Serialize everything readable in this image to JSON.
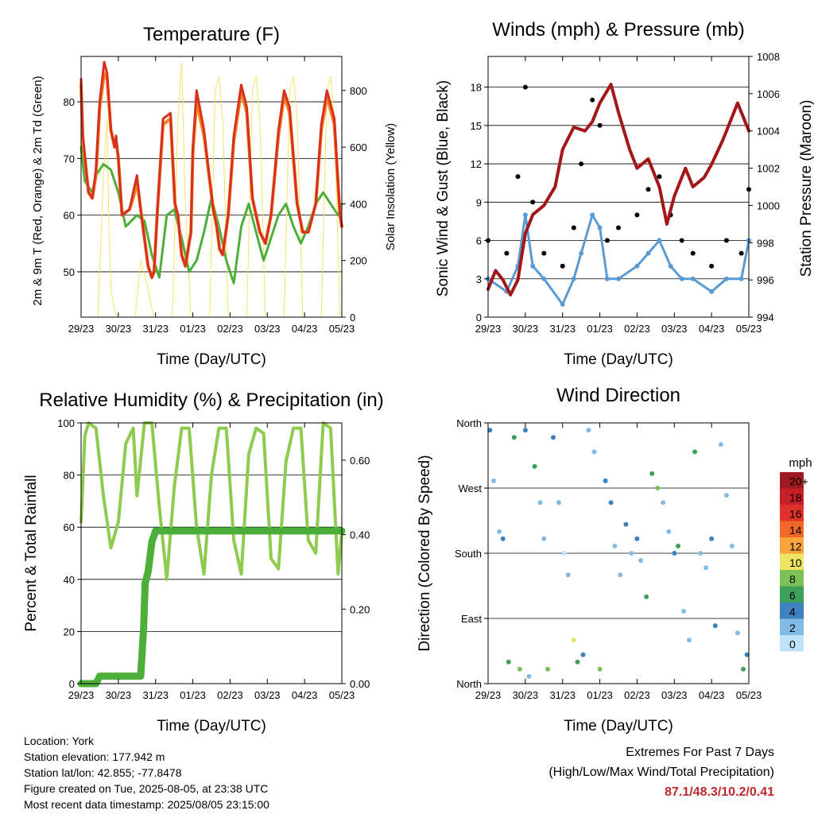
{
  "x_ticks": [
    "29/23",
    "30/23",
    "31/23",
    "01/23",
    "02/23",
    "03/23",
    "04/23",
    "05/23"
  ],
  "x_label": "Time (Day/UTC)",
  "colors": {
    "temp_2m": "#d7301f",
    "temp_9m": "#f4831f",
    "dewpoint": "#4daf3a",
    "solar": "#f5e36b",
    "wind": "#5a9bd5",
    "gust": "#000000",
    "pressure": "#a3171b",
    "rh": "#8fcb4f",
    "precip": "#4caf3a"
  },
  "chart_data": [
    {
      "type": "line",
      "title": "Temperature (F)",
      "xlabel": "Time (Day/UTC)",
      "ylabel": "2m & 9m T (Red, Orange) & 2m Td (Green)",
      "y2label": "Solar Insolation (Yellow)",
      "ylim": [
        42,
        88
      ],
      "y2lim": [
        0,
        920
      ],
      "yticks": [
        50,
        60,
        70,
        80
      ],
      "y2ticks": [
        0,
        200,
        400,
        600,
        800
      ],
      "series": [
        {
          "name": "2m T",
          "color": "#d7301f",
          "x": [
            0,
            0.05,
            0.2,
            0.3,
            0.4,
            0.5,
            0.62,
            0.7,
            0.8,
            0.9,
            0.94,
            1,
            1.1,
            1.3,
            1.4,
            1.5,
            1.6,
            1.8,
            1.9,
            1.96,
            2.05,
            2.2,
            2.4,
            2.52,
            2.6,
            2.7,
            2.8,
            2.95,
            3.0,
            3.1,
            3.3,
            3.55,
            3.64,
            3.72,
            3.8,
            3.95,
            4.1,
            4.3,
            4.45,
            4.6,
            4.8,
            4.95,
            5.1,
            5.3,
            5.45,
            5.6,
            5.8,
            5.95,
            6.1,
            6.3,
            6.45,
            6.6,
            6.8,
            6.95,
            7.0
          ],
          "y": [
            84,
            74,
            64,
            63,
            68,
            80,
            87,
            85,
            75,
            72,
            74,
            70,
            60,
            61,
            64,
            67,
            61,
            51,
            49,
            50,
            61,
            77,
            78,
            62,
            60,
            53,
            51,
            57,
            72,
            82,
            75,
            61,
            58,
            54,
            53,
            60,
            74,
            83,
            79,
            63,
            57,
            55,
            60,
            75,
            82,
            79,
            62,
            57,
            57,
            62,
            76,
            82,
            77,
            60,
            58
          ]
        },
        {
          "name": "9m T",
          "color": "#f4831f",
          "x": [
            0,
            0.05,
            0.2,
            0.3,
            0.4,
            0.5,
            0.62,
            0.7,
            0.8,
            0.9,
            0.94,
            1,
            1.1,
            1.3,
            1.4,
            1.5,
            1.6,
            1.8,
            1.9,
            1.96,
            2.05,
            2.2,
            2.4,
            2.52,
            2.6,
            2.7,
            2.8,
            2.95,
            3.0,
            3.1,
            3.3,
            3.55,
            3.64,
            3.72,
            3.8,
            3.95,
            4.1,
            4.3,
            4.45,
            4.6,
            4.8,
            4.95,
            5.1,
            5.3,
            5.45,
            5.6,
            5.8,
            5.95,
            6.1,
            6.3,
            6.45,
            6.6,
            6.8,
            6.95,
            7.0
          ],
          "y": [
            83,
            73,
            64,
            63,
            67,
            79,
            85,
            84,
            75,
            72,
            73,
            70,
            60,
            61,
            63,
            66,
            61,
            51,
            49,
            50,
            61,
            76,
            77,
            62,
            60,
            53,
            51,
            57,
            71,
            80,
            74,
            61,
            58,
            54,
            53,
            60,
            73,
            82,
            78,
            63,
            57,
            55,
            60,
            74,
            81,
            78,
            62,
            57,
            57,
            62,
            75,
            81,
            76,
            60,
            58
          ]
        },
        {
          "name": "2m Td",
          "color": "#4daf3a",
          "x": [
            0,
            0.1,
            0.3,
            0.4,
            0.6,
            0.8,
            1.0,
            1.2,
            1.5,
            1.7,
            1.9,
            2.1,
            2.3,
            2.5,
            2.7,
            2.9,
            3.1,
            3.3,
            3.5,
            3.7,
            3.9,
            4.1,
            4.3,
            4.5,
            4.7,
            4.9,
            5.1,
            5.3,
            5.5,
            5.7,
            5.9,
            6.1,
            6.3,
            6.5,
            6.7,
            6.9,
            7.0
          ],
          "y": [
            72,
            66,
            64,
            67,
            69,
            68,
            64,
            58,
            60,
            59,
            53,
            49,
            60,
            61,
            56,
            50,
            52,
            57,
            63,
            58,
            52,
            48,
            58,
            62,
            57,
            52,
            56,
            60,
            62,
            58,
            55,
            58,
            62,
            64,
            62,
            60,
            62
          ]
        },
        {
          "name": "Solar Insolation",
          "color": "#f5e36b",
          "axis": "y2",
          "x": [
            0,
            0.45,
            0.6,
            0.7,
            0.75,
            0.8,
            0.95,
            1.45,
            1.6,
            1.7,
            1.8,
            1.95,
            2.45,
            2.6,
            2.7,
            2.8,
            2.95,
            3.45,
            3.6,
            3.7,
            3.8,
            3.95,
            4.45,
            4.6,
            4.7,
            4.8,
            4.95,
            5.45,
            5.6,
            5.7,
            5.8,
            5.95,
            6.45,
            6.6,
            6.7,
            6.8,
            6.95,
            7.0
          ],
          "y": [
            0,
            0,
            500,
            700,
            300,
            100,
            0,
            0,
            200,
            150,
            100,
            0,
            0,
            700,
            900,
            400,
            0,
            0,
            800,
            850,
            700,
            0,
            0,
            800,
            850,
            700,
            0,
            0,
            800,
            850,
            700,
            0,
            0,
            800,
            850,
            700,
            0,
            0
          ]
        }
      ]
    },
    {
      "type": "scatter",
      "title": "Winds (mph) & Pressure (mb)",
      "xlabel": "Time (Day/UTC)",
      "ylabel": "Sonic Wind & Gust (Blue, Black)",
      "y2label": "Station Pressure (Maroon)",
      "ylim": [
        0,
        20.4
      ],
      "y2lim": [
        994,
        1008
      ],
      "yticks": [
        0,
        3,
        6,
        9,
        12,
        15,
        18
      ],
      "y2ticks": [
        994,
        996,
        998,
        1000,
        1002,
        1004,
        1006,
        1008
      ],
      "series": [
        {
          "name": "Gust",
          "color": "#000000",
          "x": [
            0,
            0.5,
            0.8,
            1.0,
            1.2,
            1.5,
            2.0,
            2.3,
            2.5,
            2.8,
            3.0,
            3.2,
            3.5,
            4.0,
            4.3,
            4.6,
            4.9,
            5.2,
            5.5,
            6.0,
            6.4,
            6.8,
            7.0
          ],
          "y": [
            6,
            5,
            11,
            18,
            9,
            5,
            4,
            7,
            12,
            17,
            15,
            6,
            7,
            8,
            10,
            11,
            8,
            6,
            5,
            4,
            6,
            5,
            10
          ]
        },
        {
          "name": "Sonic Wind",
          "color": "#5a9bd5",
          "x": [
            0,
            0.5,
            0.8,
            1.0,
            1.2,
            1.5,
            2.0,
            2.3,
            2.5,
            2.8,
            3.0,
            3.2,
            3.5,
            4.0,
            4.3,
            4.6,
            4.9,
            5.2,
            5.5,
            6.0,
            6.4,
            6.8,
            7.0
          ],
          "y": [
            3,
            2,
            4,
            8,
            4,
            3,
            1,
            3,
            5,
            8,
            7,
            3,
            3,
            4,
            5,
            6,
            4,
            3,
            3,
            2,
            3,
            3,
            6
          ]
        },
        {
          "name": "Station Pressure",
          "color": "#a3171b",
          "axis": "y2",
          "x": [
            0,
            0.2,
            0.4,
            0.6,
            0.8,
            1.0,
            1.2,
            1.5,
            1.8,
            2.0,
            2.3,
            2.6,
            2.8,
            3.0,
            3.3,
            3.5,
            3.8,
            4.0,
            4.3,
            4.6,
            4.8,
            5.0,
            5.3,
            5.5,
            5.8,
            6.0,
            6.3,
            6.5,
            6.7,
            6.8,
            7.0
          ],
          "y": [
            995.5,
            996.5,
            996,
            995.2,
            996,
            998.5,
            999.5,
            1000,
            1001,
            1003,
            1004.2,
            1004,
            1004.5,
            1005.5,
            1006.5,
            1005,
            1003,
            1002,
            1002.5,
            1001,
            999,
            1000.5,
            1002,
            1001,
            1001.5,
            1002.2,
            1003.5,
            1004.5,
            1005.5,
            1005,
            1004
          ]
        }
      ]
    },
    {
      "type": "line",
      "title": "Relative Humidity (%) & Precipitation (in)",
      "xlabel": "Time (Day/UTC)",
      "ylabel": "Percent & Total Rainfall",
      "ylim": [
        0,
        100
      ],
      "y2lim": [
        0,
        0.7
      ],
      "yticks": [
        0,
        20,
        40,
        60,
        80,
        100
      ],
      "y2ticks": [
        0.0,
        0.2,
        0.4,
        0.6
      ],
      "y2ticklabels": [
        "0.00",
        "0.20",
        "0.40",
        "0.60"
      ],
      "series": [
        {
          "name": "Relative Humidity",
          "color": "#8fcb4f",
          "x": [
            0,
            0.1,
            0.2,
            0.4,
            0.6,
            0.8,
            1.0,
            1.2,
            1.4,
            1.5,
            1.7,
            1.9,
            2.1,
            2.3,
            2.5,
            2.7,
            2.9,
            3.1,
            3.3,
            3.5,
            3.7,
            3.9,
            4.1,
            4.3,
            4.5,
            4.7,
            4.9,
            5.1,
            5.3,
            5.5,
            5.7,
            5.9,
            6.1,
            6.3,
            6.5,
            6.7,
            6.9,
            7.0
          ],
          "y": [
            62,
            95,
            100,
            98,
            72,
            52,
            62,
            92,
            98,
            72,
            100,
            100,
            68,
            40,
            75,
            98,
            98,
            60,
            42,
            80,
            98,
            98,
            55,
            42,
            88,
            98,
            96,
            48,
            44,
            85,
            98,
            98,
            55,
            50,
            100,
            98,
            42,
            58
          ]
        },
        {
          "name": "Total Precipitation",
          "color": "#4caf3a",
          "axis": "y2",
          "x": [
            0,
            0.4,
            0.5,
            1.2,
            1.6,
            1.68,
            1.72,
            1.8,
            1.9,
            2.0,
            7.0
          ],
          "y": [
            0,
            0,
            0.02,
            0.02,
            0.02,
            0.15,
            0.27,
            0.3,
            0.38,
            0.41,
            0.41
          ]
        }
      ]
    },
    {
      "type": "scatter",
      "title": "Wind Direction",
      "xlabel": "Time (Day/UTC)",
      "ylabel": "Direction (Colored By Speed)",
      "y_categories": [
        "North",
        "East",
        "South",
        "West",
        "North"
      ],
      "ylim": [
        0,
        360
      ],
      "legend_title": "mph",
      "legend_labels": [
        "20+",
        "18",
        "16",
        "14",
        "12",
        "10",
        "8",
        "6",
        "4",
        "2",
        "0"
      ],
      "legend_colors": [
        "#9e1b1f",
        "#c62026",
        "#e0322b",
        "#f0672a",
        "#f9a33b",
        "#ede463",
        "#7cc155",
        "#3fa059",
        "#3d82bf",
        "#82bce6",
        "#bfe4f8"
      ],
      "x": [
        0.05,
        0.15,
        0.3,
        0.4,
        0.55,
        0.7,
        0.85,
        1.0,
        1.1,
        1.25,
        1.4,
        1.5,
        1.6,
        1.75,
        1.9,
        2.05,
        2.15,
        2.3,
        2.4,
        2.55,
        2.7,
        2.85,
        3.0,
        3.15,
        3.3,
        3.4,
        3.55,
        3.7,
        3.85,
        4.0,
        4.1,
        4.25,
        4.4,
        4.55,
        4.7,
        4.85,
        5.0,
        5.1,
        5.25,
        5.4,
        5.55,
        5.7,
        5.85,
        6.0,
        6.1,
        6.25,
        6.4,
        6.55,
        6.7,
        6.85,
        6.95
      ],
      "y": [
        350,
        280,
        210,
        200,
        30,
        340,
        20,
        350,
        10,
        300,
        250,
        200,
        20,
        340,
        250,
        180,
        150,
        60,
        30,
        40,
        350,
        320,
        20,
        280,
        250,
        190,
        150,
        220,
        180,
        200,
        170,
        120,
        290,
        270,
        250,
        210,
        180,
        190,
        100,
        60,
        320,
        180,
        160,
        200,
        80,
        330,
        260,
        190,
        70,
        20,
        40
      ],
      "speed": [
        4,
        2,
        2,
        4,
        6,
        6,
        8,
        4,
        3,
        6,
        2,
        2,
        8,
        4,
        2,
        1,
        2,
        10,
        6,
        4,
        2,
        3,
        8,
        4,
        4,
        2,
        2,
        4,
        2,
        5,
        2,
        6,
        6,
        8,
        3,
        2,
        4,
        6,
        3,
        2,
        6,
        2,
        2,
        4,
        4,
        2,
        2,
        3,
        2,
        6,
        5
      ]
    }
  ],
  "info": {
    "location": "Location: York",
    "elevation": "Station elevation: 177.942 m",
    "latlon": "Station lat/lon: 42.855; -77.8478",
    "created": "Figure created on Tue, 2025-08-05, at 23:38 UTC",
    "recent": "Most recent data timestamp: 2025/08/05 23:15:00"
  },
  "extremes": {
    "title": "Extremes For Past 7 Days",
    "subtitle": "(High/Low/Max Wind/Total Precipitation)",
    "values": "87.1/48.3/10.2/0.41"
  }
}
